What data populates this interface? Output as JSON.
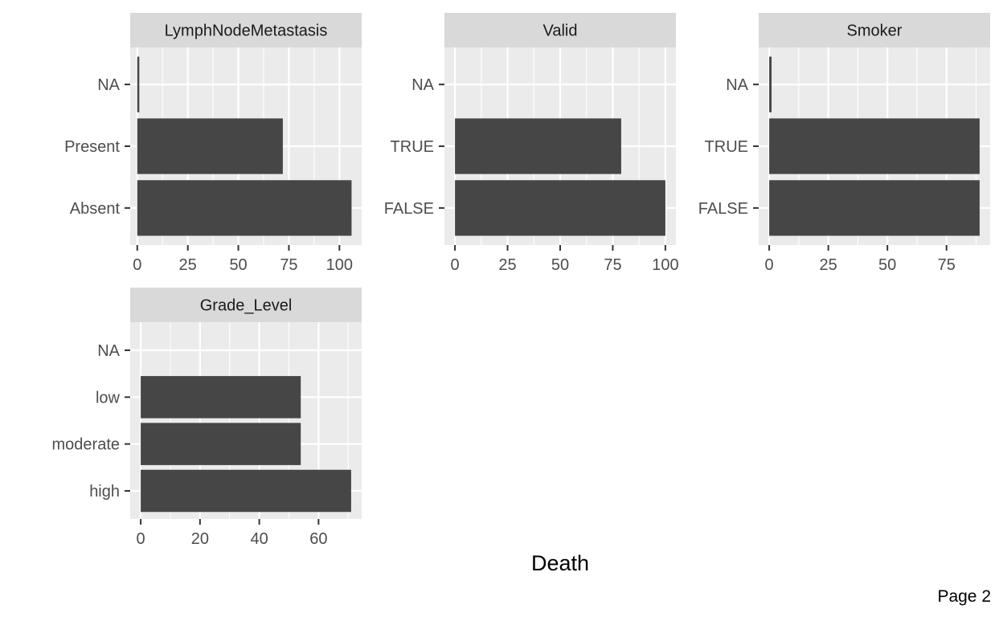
{
  "chart_data": {
    "type": "bar",
    "orientation": "horizontal",
    "xlabel": "Death",
    "grid": true,
    "panels": [
      {
        "title": "LymphNodeMetastasis",
        "categories": [
          "Absent",
          "Present",
          "NA"
        ],
        "values": [
          106,
          72,
          1
        ],
        "xticks": [
          0,
          25,
          50,
          75,
          100
        ],
        "xlim": [
          -3.5,
          111
        ]
      },
      {
        "title": "Valid",
        "categories": [
          "FALSE",
          "TRUE",
          "NA"
        ],
        "values": [
          100,
          79,
          0
        ],
        "xticks": [
          0,
          25,
          50,
          75,
          100
        ],
        "xlim": [
          -5,
          105
        ]
      },
      {
        "title": "Smoker",
        "categories": [
          "FALSE",
          "TRUE",
          "NA"
        ],
        "values": [
          89,
          89,
          1
        ],
        "xticks": [
          0,
          25,
          50,
          75
        ],
        "xlim": [
          -4.45,
          93.45
        ]
      },
      {
        "title": "Grade_Level",
        "categories": [
          "high",
          "moderate",
          "low",
          "NA"
        ],
        "values": [
          71,
          54,
          54,
          0
        ],
        "xticks": [
          0,
          20,
          40,
          60
        ],
        "xlim": [
          -3.55,
          74.55
        ]
      }
    ]
  },
  "footer": {
    "page_label": "Page 2"
  },
  "colors": {
    "bar": "#464646",
    "panel_background": "#ebebeb",
    "grid": "#ffffff",
    "strip_background": "#d9d9d9",
    "tick": "#333333"
  }
}
